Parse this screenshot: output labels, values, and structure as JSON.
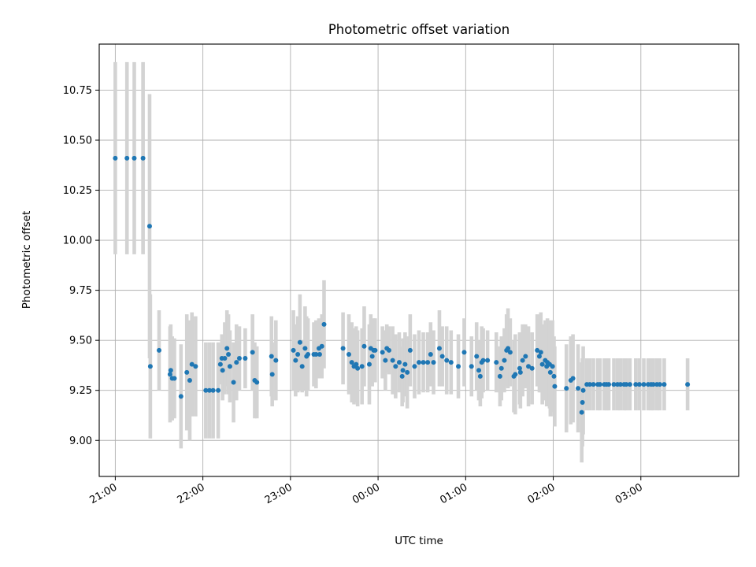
{
  "chart_data": {
    "type": "scatter",
    "title": "Photometric offset variation",
    "xlabel": "UTC time",
    "ylabel": "Photometric offset",
    "x_unit": "minutes",
    "xlim": [
      -11,
      427
    ],
    "ylim": [
      8.82,
      10.98
    ],
    "x_ticks": [
      {
        "minute": 0,
        "label": "21:00"
      },
      {
        "minute": 60,
        "label": "22:00"
      },
      {
        "minute": 120,
        "label": "23:00"
      },
      {
        "minute": 180,
        "label": "00:00"
      },
      {
        "minute": 240,
        "label": "01:00"
      },
      {
        "minute": 300,
        "label": "02:00"
      },
      {
        "minute": 360,
        "label": "03:00"
      }
    ],
    "y_ticks": [
      {
        "value": 9.0,
        "label": "9.00"
      },
      {
        "value": 9.25,
        "label": "9.25"
      },
      {
        "value": 9.5,
        "label": "9.50"
      },
      {
        "value": 9.75,
        "label": "9.75"
      },
      {
        "value": 10.0,
        "label": "10.00"
      },
      {
        "value": 10.25,
        "label": "10.25"
      },
      {
        "value": 10.5,
        "label": "10.50"
      },
      {
        "value": 10.75,
        "label": "10.75"
      }
    ],
    "grid": true,
    "colors": {
      "points": "#1f77b4",
      "errorbars": "#d3d3d3"
    },
    "series": [
      {
        "points": [
          [
            0.0,
            10.41,
            0.48
          ],
          [
            8.0,
            10.41,
            0.48
          ],
          [
            13.0,
            10.41,
            0.48
          ],
          [
            19.0,
            10.41,
            0.48
          ],
          [
            23.5,
            10.07,
            0.66
          ],
          [
            24.0,
            9.37,
            0.36
          ],
          [
            30.0,
            9.45,
            0.2
          ],
          [
            37.5,
            9.33,
            0.24
          ],
          [
            38.0,
            9.35,
            0.23
          ],
          [
            39.0,
            9.31,
            0.21
          ],
          [
            40.5,
            9.31,
            0.2
          ],
          [
            45.0,
            9.22,
            0.26
          ],
          [
            49.0,
            9.34,
            0.29
          ],
          [
            51.0,
            9.3,
            0.3
          ],
          [
            52.5,
            9.38,
            0.26
          ],
          [
            55.0,
            9.37,
            0.25
          ],
          [
            62.0,
            9.25,
            0.24
          ],
          [
            64.5,
            9.25,
            0.24
          ],
          [
            67.0,
            9.25,
            0.24
          ],
          [
            70.5,
            9.25,
            0.24
          ],
          [
            72.0,
            9.38,
            0.1
          ],
          [
            73.0,
            9.41,
            0.12
          ],
          [
            73.5,
            9.35,
            0.15
          ],
          [
            75.0,
            9.41,
            0.18
          ],
          [
            76.5,
            9.46,
            0.19
          ],
          [
            77.5,
            9.43,
            0.2
          ],
          [
            78.5,
            9.37,
            0.18
          ],
          [
            81.0,
            9.29,
            0.2
          ],
          [
            83.0,
            9.39,
            0.19
          ],
          [
            85.0,
            9.41,
            0.16
          ],
          [
            89.0,
            9.41,
            0.15
          ],
          [
            94.0,
            9.44,
            0.19
          ],
          [
            95.5,
            9.3,
            0.19
          ],
          [
            97.0,
            9.29,
            0.18
          ],
          [
            107.0,
            9.42,
            0.2
          ],
          [
            107.5,
            9.33,
            0.16
          ],
          [
            110.0,
            9.4,
            0.2
          ],
          [
            122.0,
            9.45,
            0.2
          ],
          [
            123.5,
            9.4,
            0.18
          ],
          [
            125.0,
            9.43,
            0.19
          ],
          [
            126.5,
            9.49,
            0.24
          ],
          [
            128.0,
            9.37,
            0.13
          ],
          [
            130.0,
            9.46,
            0.21
          ],
          [
            131.0,
            9.42,
            0.2
          ],
          [
            132.0,
            9.43,
            0.18
          ],
          [
            136.0,
            9.43,
            0.16
          ],
          [
            137.5,
            9.43,
            0.17
          ],
          [
            139.5,
            9.46,
            0.15
          ],
          [
            140.0,
            9.43,
            0.12
          ],
          [
            141.5,
            9.47,
            0.16
          ],
          [
            143.0,
            9.58,
            0.22
          ],
          [
            156.0,
            9.46,
            0.18
          ],
          [
            160.0,
            9.43,
            0.2
          ],
          [
            162.0,
            9.39,
            0.2
          ],
          [
            163.5,
            9.37,
            0.19
          ],
          [
            165.0,
            9.38,
            0.19
          ],
          [
            166.0,
            9.36,
            0.19
          ],
          [
            169.0,
            9.37,
            0.19
          ],
          [
            170.5,
            9.47,
            0.2
          ],
          [
            174.0,
            9.38,
            0.2
          ],
          [
            175.0,
            9.46,
            0.17
          ],
          [
            176.0,
            9.42,
            0.15
          ],
          [
            177.0,
            9.45,
            0.16
          ],
          [
            178.0,
            9.45,
            0.16
          ],
          [
            183.0,
            9.44,
            0.13
          ],
          [
            185.0,
            9.4,
            0.15
          ],
          [
            186.0,
            9.46,
            0.12
          ],
          [
            187.5,
            9.45,
            0.12
          ],
          [
            190.0,
            9.4,
            0.17
          ],
          [
            192.0,
            9.37,
            0.16
          ],
          [
            194.5,
            9.39,
            0.15
          ],
          [
            196.5,
            9.32,
            0.15
          ],
          [
            197.0,
            9.35,
            0.16
          ],
          [
            198.5,
            9.38,
            0.16
          ],
          [
            200.0,
            9.34,
            0.18
          ],
          [
            202.0,
            9.45,
            0.18
          ],
          [
            205.0,
            9.37,
            0.16
          ],
          [
            208.0,
            9.39,
            0.16
          ],
          [
            211.0,
            9.39,
            0.15
          ],
          [
            214.0,
            9.39,
            0.15
          ],
          [
            216.0,
            9.43,
            0.16
          ],
          [
            218.0,
            9.39,
            0.16
          ],
          [
            222.0,
            9.46,
            0.19
          ],
          [
            224.0,
            9.42,
            0.15
          ],
          [
            227.0,
            9.4,
            0.17
          ],
          [
            230.0,
            9.39,
            0.16
          ],
          [
            235.0,
            9.37,
            0.16
          ],
          [
            239.0,
            9.44,
            0.17
          ],
          [
            244.0,
            9.37,
            0.15
          ],
          [
            247.5,
            9.42,
            0.17
          ],
          [
            249.0,
            9.35,
            0.15
          ],
          [
            250.0,
            9.32,
            0.15
          ],
          [
            251.0,
            9.39,
            0.18
          ],
          [
            252.0,
            9.4,
            0.16
          ],
          [
            255.0,
            9.4,
            0.15
          ],
          [
            261.0,
            9.39,
            0.15
          ],
          [
            263.5,
            9.32,
            0.15
          ],
          [
            264.5,
            9.36,
            0.16
          ],
          [
            266.5,
            9.4,
            0.16
          ],
          [
            268.0,
            9.45,
            0.18
          ],
          [
            269.0,
            9.46,
            0.2
          ],
          [
            270.5,
            9.44,
            0.17
          ],
          [
            273.0,
            9.32,
            0.18
          ],
          [
            274.0,
            9.33,
            0.2
          ],
          [
            277.0,
            9.36,
            0.18
          ],
          [
            277.5,
            9.34,
            0.18
          ],
          [
            279.0,
            9.4,
            0.18
          ],
          [
            281.0,
            9.42,
            0.16
          ],
          [
            283.0,
            9.37,
            0.2
          ],
          [
            285.5,
            9.36,
            0.18
          ],
          [
            289.0,
            9.45,
            0.18
          ],
          [
            290.5,
            9.42,
            0.18
          ],
          [
            291.5,
            9.44,
            0.2
          ],
          [
            292.5,
            9.38,
            0.2
          ],
          [
            294.5,
            9.4,
            0.2
          ],
          [
            295.5,
            9.37,
            0.2
          ],
          [
            296.0,
            9.39,
            0.22
          ],
          [
            297.5,
            9.38,
            0.22
          ],
          [
            298.0,
            9.34,
            0.22
          ],
          [
            299.5,
            9.37,
            0.23
          ],
          [
            300.5,
            9.32,
            0.2
          ],
          [
            301.0,
            9.27,
            0.2
          ],
          [
            309.0,
            9.26,
            0.22
          ],
          [
            312.0,
            9.3,
            0.22
          ],
          [
            313.5,
            9.31,
            0.22
          ],
          [
            317.0,
            9.26,
            0.22
          ],
          [
            319.5,
            9.14,
            0.25
          ],
          [
            320.0,
            9.19,
            0.22
          ],
          [
            320.5,
            9.25,
            0.22
          ],
          [
            323.0,
            9.28,
            0.13
          ],
          [
            325.0,
            9.28,
            0.13
          ],
          [
            327.5,
            9.28,
            0.13
          ],
          [
            330.5,
            9.28,
            0.13
          ],
          [
            332.0,
            9.28,
            0.13
          ],
          [
            335.0,
            9.28,
            0.13
          ],
          [
            336.5,
            9.28,
            0.13
          ],
          [
            338.0,
            9.28,
            0.13
          ],
          [
            341.5,
            9.28,
            0.13
          ],
          [
            344.0,
            9.28,
            0.13
          ],
          [
            346.0,
            9.28,
            0.13
          ],
          [
            348.5,
            9.28,
            0.13
          ],
          [
            350.0,
            9.28,
            0.13
          ],
          [
            352.5,
            9.28,
            0.13
          ],
          [
            356.5,
            9.28,
            0.13
          ],
          [
            359.0,
            9.28,
            0.13
          ],
          [
            362.0,
            9.28,
            0.13
          ],
          [
            365.0,
            9.28,
            0.13
          ],
          [
            367.0,
            9.28,
            0.13
          ],
          [
            368.5,
            9.28,
            0.13
          ],
          [
            371.0,
            9.28,
            0.13
          ],
          [
            373.0,
            9.28,
            0.13
          ],
          [
            376.0,
            9.28,
            0.13
          ],
          [
            392.0,
            9.28,
            0.13
          ]
        ]
      }
    ]
  }
}
